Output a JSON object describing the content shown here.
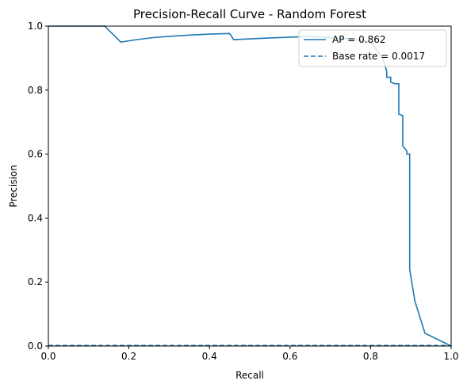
{
  "chart_data": {
    "type": "line",
    "title": "Precision-Recall Curve - Random Forest",
    "xlabel": "Recall",
    "ylabel": "Precision",
    "xlim": [
      0,
      1
    ],
    "ylim": [
      0,
      1
    ],
    "xticks": [
      "0.0",
      "0.2",
      "0.4",
      "0.6",
      "0.8",
      "1.0"
    ],
    "yticks": [
      "0.0",
      "0.2",
      "0.4",
      "0.6",
      "0.8",
      "1.0"
    ],
    "grid": false,
    "legend_position": "top-right",
    "series": [
      {
        "name": "AP = 0.862",
        "style": "solid",
        "color": "#1f77b4",
        "x": [
          0.0,
          0.14,
          0.18,
          0.22,
          0.26,
          0.3,
          0.35,
          0.4,
          0.45,
          0.46,
          0.55,
          0.65,
          0.75,
          0.8,
          0.83,
          0.84,
          0.84,
          0.85,
          0.85,
          0.86,
          0.86,
          0.87,
          0.87,
          0.88,
          0.88,
          0.89,
          0.89,
          0.897,
          0.897,
          0.91,
          0.935,
          1.0
        ],
        "y": [
          1.0,
          1.0,
          0.95,
          0.958,
          0.964,
          0.968,
          0.972,
          0.975,
          0.977,
          0.958,
          0.963,
          0.968,
          0.96,
          0.95,
          0.9,
          0.86,
          0.84,
          0.84,
          0.825,
          0.82,
          0.82,
          0.82,
          0.725,
          0.72,
          0.625,
          0.61,
          0.6,
          0.6,
          0.24,
          0.14,
          0.04,
          0.0
        ]
      },
      {
        "name": "Base rate = 0.0017",
        "style": "dashed",
        "color": "#1f77b4",
        "x": [
          0.0,
          1.0
        ],
        "y": [
          0.0017,
          0.0017
        ]
      }
    ]
  }
}
